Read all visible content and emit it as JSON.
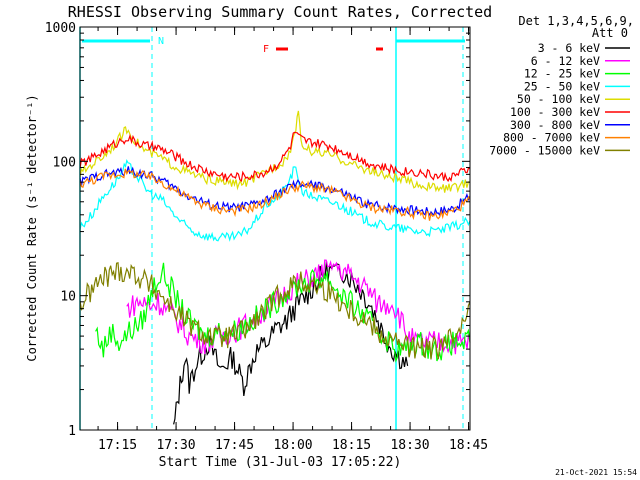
{
  "chart_data": {
    "type": "line",
    "title": "RHESSI Observing Summary Count Rates, Corrected",
    "xlabel": "Start Time (31-Jul-03 17:05:22)",
    "ylabel": "Corrected Count Rate (s⁻¹ detector⁻¹)",
    "yscale": "log",
    "ylim": [
      1,
      1000
    ],
    "xlim_minutes_from_start": [
      0,
      100
    ],
    "x_ticks": [
      "17:15",
      "17:30",
      "17:45",
      "18:00",
      "18:15",
      "18:30",
      "18:45"
    ],
    "y_ticks": [
      "1",
      "10",
      "100",
      "1000"
    ],
    "legend_header": [
      "Det 1,3,4,5,6,9,",
      "Att 0"
    ],
    "legend_position": "right",
    "footer": "21-Oct-2021 15:54",
    "flag_labels": {
      "night": "N",
      "flare": "F"
    },
    "series": [
      {
        "name": "3 - 6 keV",
        "color": "#000000",
        "points": [
          [
            24,
            1
          ],
          [
            25,
            1.6
          ],
          [
            26,
            2.5
          ],
          [
            27,
            3.5
          ],
          [
            28,
            2.2
          ],
          [
            30,
            3.2
          ],
          [
            33,
            4.5
          ],
          [
            36,
            2.8
          ],
          [
            39,
            3.5
          ],
          [
            42,
            2.2
          ],
          [
            45,
            3.8
          ],
          [
            48,
            4.5
          ],
          [
            50,
            5.5
          ],
          [
            53,
            6.5
          ],
          [
            55,
            8
          ],
          [
            58,
            10
          ],
          [
            60,
            12
          ],
          [
            62,
            14
          ],
          [
            64,
            16
          ],
          [
            66,
            16
          ],
          [
            68,
            15
          ],
          [
            70,
            13
          ],
          [
            72,
            11
          ],
          [
            74,
            9
          ],
          [
            76,
            7
          ],
          [
            78,
            5
          ],
          [
            80,
            4
          ],
          [
            82,
            3.5
          ],
          [
            84,
            3
          ]
        ]
      },
      {
        "name": "6 - 12 keV",
        "color": "#ff00ff",
        "points": [
          [
            12,
            8
          ],
          [
            15,
            9
          ],
          [
            18,
            8.5
          ],
          [
            20,
            9
          ],
          [
            22,
            8
          ],
          [
            24,
            7
          ],
          [
            26,
            6
          ],
          [
            28,
            5
          ],
          [
            32,
            4.5
          ],
          [
            36,
            5
          ],
          [
            40,
            5.5
          ],
          [
            44,
            6.5
          ],
          [
            48,
            8
          ],
          [
            52,
            10
          ],
          [
            55,
            12
          ],
          [
            58,
            13
          ],
          [
            62,
            15
          ],
          [
            65,
            17
          ],
          [
            68,
            15
          ],
          [
            71,
            13
          ],
          [
            74,
            11
          ],
          [
            76,
            9
          ],
          [
            78,
            8.5
          ],
          [
            80,
            9
          ],
          [
            82,
            7
          ],
          [
            84,
            5
          ],
          [
            86,
            4.5
          ],
          [
            88,
            4.5
          ],
          [
            90,
            4.5
          ],
          [
            92,
            4.5
          ],
          [
            94,
            4.5
          ],
          [
            97,
            4.5
          ],
          [
            100,
            4.5
          ]
        ]
      },
      {
        "name": "12 - 25 keV",
        "color": "#00ff00",
        "points": [
          [
            4,
            5.5
          ],
          [
            6,
            4
          ],
          [
            8,
            5.5
          ],
          [
            10,
            4.5
          ],
          [
            13,
            5.5
          ],
          [
            16,
            6.5
          ],
          [
            19,
            12
          ],
          [
            21,
            15
          ],
          [
            23,
            12
          ],
          [
            25,
            9
          ],
          [
            27,
            7
          ],
          [
            29,
            6
          ],
          [
            32,
            5
          ],
          [
            36,
            5.5
          ],
          [
            40,
            5.5
          ],
          [
            44,
            6.5
          ],
          [
            48,
            8
          ],
          [
            52,
            10
          ],
          [
            56,
            12
          ],
          [
            60,
            13
          ],
          [
            63,
            14
          ],
          [
            66,
            11
          ],
          [
            69,
            9
          ],
          [
            72,
            7.5
          ],
          [
            75,
            6
          ],
          [
            78,
            5
          ],
          [
            81,
            4
          ],
          [
            84,
            4
          ],
          [
            87,
            4.5
          ],
          [
            90,
            4
          ],
          [
            93,
            4
          ],
          [
            96,
            4.5
          ],
          [
            100,
            4.5
          ]
        ]
      },
      {
        "name": "25 - 50 keV",
        "color": "#00ffff",
        "points": [
          [
            0,
            32
          ],
          [
            3,
            40
          ],
          [
            6,
            55
          ],
          [
            9,
            70
          ],
          [
            11,
            85
          ],
          [
            12,
            95
          ],
          [
            13,
            88
          ],
          [
            15,
            75
          ],
          [
            17,
            62
          ],
          [
            19,
            55
          ],
          [
            21,
            52
          ],
          [
            23,
            44
          ],
          [
            26,
            35
          ],
          [
            29,
            30
          ],
          [
            32,
            28
          ],
          [
            35,
            27
          ],
          [
            38,
            27
          ],
          [
            41,
            28
          ],
          [
            44,
            33
          ],
          [
            46,
            40
          ],
          [
            48,
            48
          ],
          [
            50,
            52
          ],
          [
            52,
            60
          ],
          [
            54,
            75
          ],
          [
            55,
            90
          ],
          [
            56,
            75
          ],
          [
            57,
            60
          ],
          [
            58,
            57
          ],
          [
            60,
            55
          ],
          [
            62,
            52
          ],
          [
            64,
            50
          ],
          [
            66,
            48
          ],
          [
            69,
            43
          ],
          [
            72,
            38
          ],
          [
            75,
            35
          ],
          [
            78,
            33
          ],
          [
            81,
            32
          ],
          [
            84,
            31
          ],
          [
            87,
            30
          ],
          [
            90,
            30
          ],
          [
            93,
            31
          ],
          [
            96,
            33
          ],
          [
            100,
            36
          ]
        ]
      },
      {
        "name": "50 - 100 keV",
        "color": "#dddd00",
        "points": [
          [
            0,
            80
          ],
          [
            3,
            95
          ],
          [
            6,
            110
          ],
          [
            9,
            135
          ],
          [
            11,
            160
          ],
          [
            12,
            175
          ],
          [
            14,
            145
          ],
          [
            16,
            125
          ],
          [
            18,
            115
          ],
          [
            20,
            110
          ],
          [
            22,
            100
          ],
          [
            25,
            90
          ],
          [
            28,
            82
          ],
          [
            31,
            76
          ],
          [
            34,
            72
          ],
          [
            37,
            70
          ],
          [
            40,
            68
          ],
          [
            43,
            70
          ],
          [
            46,
            78
          ],
          [
            49,
            88
          ],
          [
            52,
            100
          ],
          [
            54,
            120
          ],
          [
            55,
            165
          ],
          [
            56,
            220
          ],
          [
            57,
            130
          ],
          [
            59,
            120
          ],
          [
            62,
            115
          ],
          [
            65,
            110
          ],
          [
            68,
            100
          ],
          [
            71,
            92
          ],
          [
            74,
            86
          ],
          [
            77,
            80
          ],
          [
            80,
            76
          ],
          [
            83,
            72
          ],
          [
            86,
            68
          ],
          [
            89,
            65
          ],
          [
            92,
            63
          ],
          [
            95,
            63
          ],
          [
            98,
            66
          ],
          [
            100,
            70
          ]
        ]
      },
      {
        "name": "100 - 300 keV",
        "color": "#ff0000",
        "points": [
          [
            0,
            95
          ],
          [
            3,
            105
          ],
          [
            6,
            120
          ],
          [
            9,
            135
          ],
          [
            11,
            145
          ],
          [
            12,
            150
          ],
          [
            14,
            140
          ],
          [
            17,
            130
          ],
          [
            20,
            125
          ],
          [
            23,
            115
          ],
          [
            26,
            102
          ],
          [
            29,
            92
          ],
          [
            32,
            85
          ],
          [
            35,
            80
          ],
          [
            38,
            77
          ],
          [
            41,
            77
          ],
          [
            44,
            78
          ],
          [
            47,
            82
          ],
          [
            50,
            92
          ],
          [
            52,
            105
          ],
          [
            54,
            130
          ],
          [
            55,
            165
          ],
          [
            56,
            150
          ],
          [
            58,
            140
          ],
          [
            61,
            135
          ],
          [
            64,
            130
          ],
          [
            67,
            120
          ],
          [
            70,
            110
          ],
          [
            73,
            100
          ],
          [
            76,
            93
          ],
          [
            79,
            88
          ],
          [
            82,
            85
          ],
          [
            85,
            84
          ],
          [
            88,
            82
          ],
          [
            91,
            78
          ],
          [
            94,
            76
          ],
          [
            97,
            80
          ],
          [
            100,
            88
          ]
        ]
      },
      {
        "name": "300 - 800 keV",
        "color": "#0000ff",
        "points": [
          [
            0,
            70
          ],
          [
            3,
            75
          ],
          [
            6,
            80
          ],
          [
            9,
            82
          ],
          [
            12,
            85
          ],
          [
            15,
            82
          ],
          [
            18,
            78
          ],
          [
            21,
            72
          ],
          [
            24,
            64
          ],
          [
            27,
            57
          ],
          [
            30,
            52
          ],
          [
            33,
            48
          ],
          [
            36,
            46
          ],
          [
            39,
            45
          ],
          [
            42,
            46
          ],
          [
            45,
            48
          ],
          [
            48,
            52
          ],
          [
            51,
            58
          ],
          [
            54,
            65
          ],
          [
            57,
            68
          ],
          [
            60,
            66
          ],
          [
            63,
            64
          ],
          [
            66,
            60
          ],
          [
            69,
            55
          ],
          [
            72,
            50
          ],
          [
            75,
            47
          ],
          [
            78,
            46
          ],
          [
            81,
            45
          ],
          [
            84,
            44
          ],
          [
            87,
            43
          ],
          [
            90,
            42
          ],
          [
            93,
            43
          ],
          [
            96,
            45
          ],
          [
            100,
            55
          ]
        ]
      },
      {
        "name": "800 - 7000 keV",
        "color": "#ff8000",
        "points": [
          [
            0,
            68
          ],
          [
            3,
            72
          ],
          [
            6,
            78
          ],
          [
            9,
            80
          ],
          [
            12,
            82
          ],
          [
            15,
            80
          ],
          [
            18,
            76
          ],
          [
            21,
            70
          ],
          [
            24,
            62
          ],
          [
            27,
            55
          ],
          [
            30,
            50
          ],
          [
            33,
            46
          ],
          [
            36,
            44
          ],
          [
            39,
            43
          ],
          [
            42,
            44
          ],
          [
            45,
            46
          ],
          [
            48,
            50
          ],
          [
            51,
            56
          ],
          [
            54,
            63
          ],
          [
            57,
            66
          ],
          [
            60,
            64
          ],
          [
            63,
            62
          ],
          [
            66,
            58
          ],
          [
            69,
            53
          ],
          [
            72,
            48
          ],
          [
            75,
            45
          ],
          [
            78,
            44
          ],
          [
            81,
            43
          ],
          [
            84,
            42
          ],
          [
            87,
            40
          ],
          [
            90,
            39
          ],
          [
            93,
            40
          ],
          [
            96,
            43
          ],
          [
            100,
            52
          ]
        ]
      },
      {
        "name": "7000 - 15000 keV",
        "color": "#808000",
        "points": [
          [
            0,
            8.5
          ],
          [
            3,
            11
          ],
          [
            6,
            13.5
          ],
          [
            9,
            15
          ],
          [
            12,
            15.5
          ],
          [
            15,
            14
          ],
          [
            18,
            12
          ],
          [
            21,
            10
          ],
          [
            24,
            8
          ],
          [
            27,
            6.5
          ],
          [
            30,
            5.5
          ],
          [
            33,
            5
          ],
          [
            36,
            4.8
          ],
          [
            39,
            5
          ],
          [
            42,
            5.5
          ],
          [
            45,
            6.5
          ],
          [
            48,
            8
          ],
          [
            51,
            10
          ],
          [
            54,
            12
          ],
          [
            57,
            12.5
          ],
          [
            60,
            12
          ],
          [
            63,
            11
          ],
          [
            66,
            9.5
          ],
          [
            69,
            8
          ],
          [
            72,
            7
          ],
          [
            75,
            6
          ],
          [
            78,
            5
          ],
          [
            81,
            4.5
          ],
          [
            84,
            4.2
          ],
          [
            87,
            4
          ],
          [
            90,
            4
          ],
          [
            93,
            4.2
          ],
          [
            96,
            5
          ],
          [
            100,
            9
          ]
        ]
      }
    ]
  }
}
